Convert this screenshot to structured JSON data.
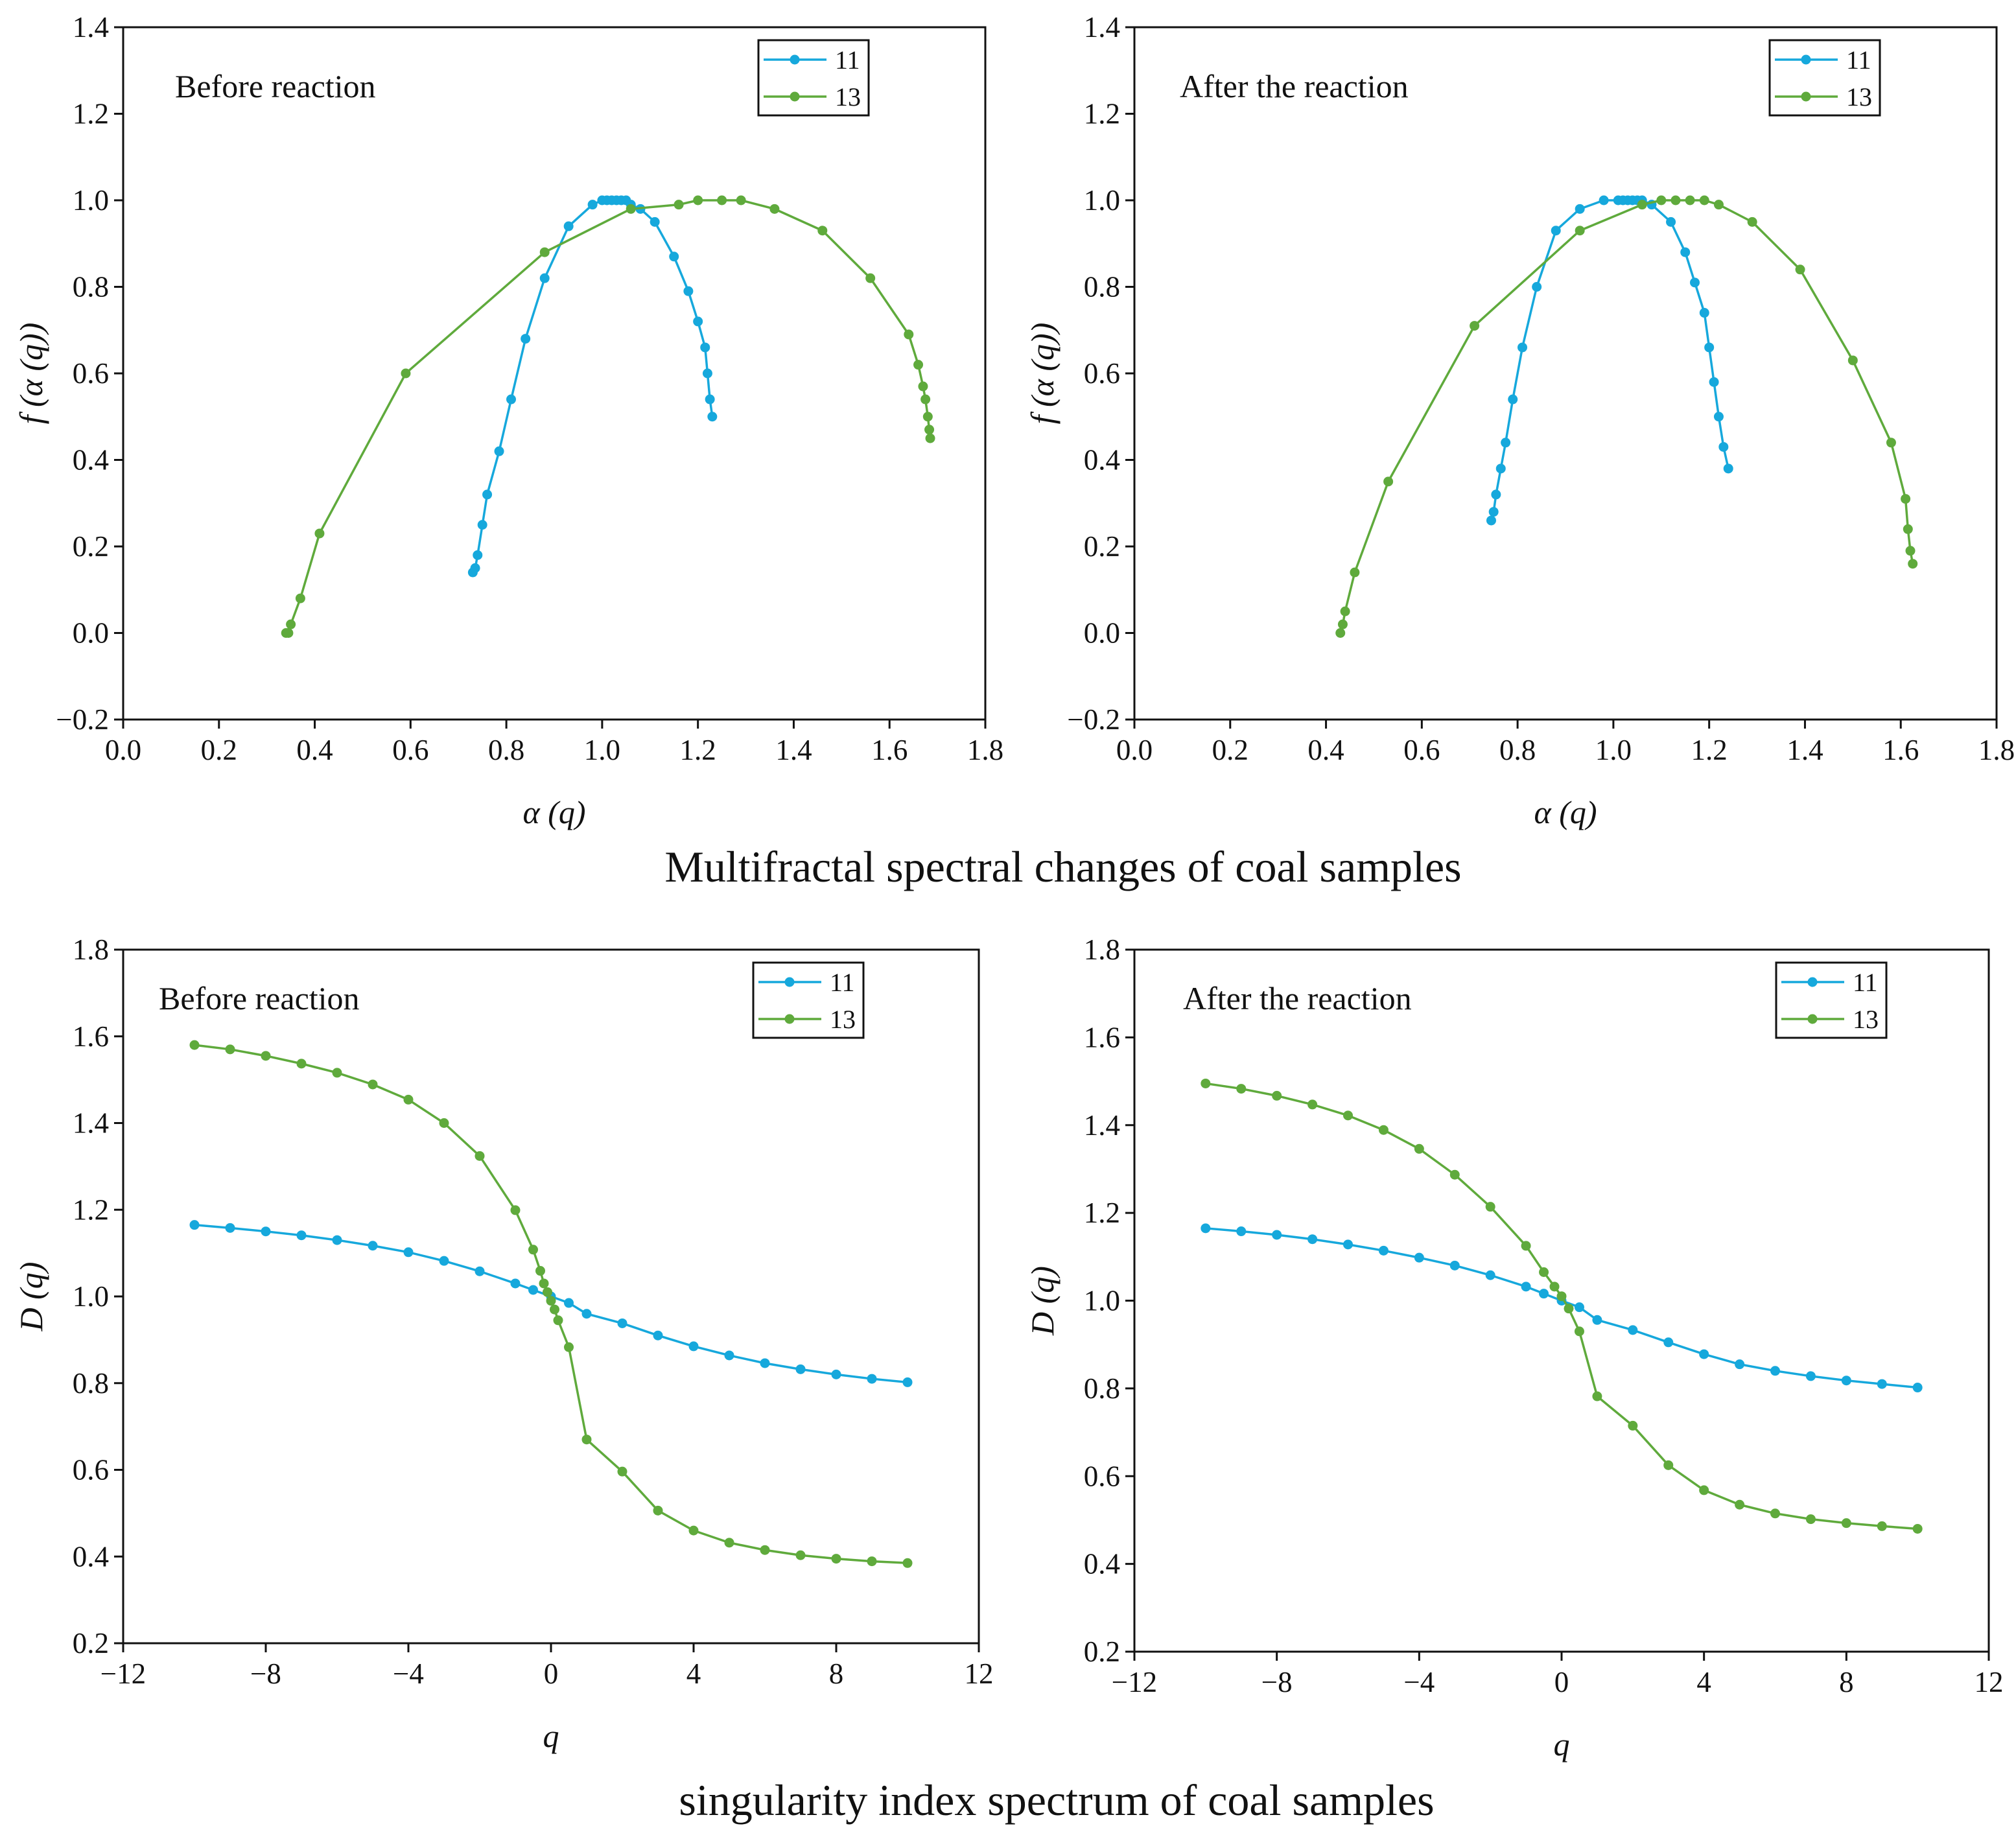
{
  "captions": {
    "top": "Multifractal spectral changes of coal samples",
    "bottom": "singularity index spectrum of coal samples"
  },
  "colors": {
    "s11": "#16a8dc",
    "s13": "#5faa3c"
  },
  "chart_data": [
    {
      "id": "tl",
      "type": "line",
      "title": "Before reaction",
      "xlabel": "α (q)",
      "ylabel": "f (α (q))",
      "xlim": [
        0.0,
        1.8
      ],
      "ylim": [
        -0.2,
        1.4
      ],
      "xticks": [
        "0.0",
        "0.2",
        "0.4",
        "0.6",
        "0.8",
        "1.0",
        "1.2",
        "1.4",
        "1.6",
        "1.8"
      ],
      "yticks": [
        "−0.2",
        "0.0",
        "0.2",
        "0.4",
        "0.6",
        "0.8",
        "1.0",
        "1.2",
        "1.4"
      ],
      "series": [
        {
          "name": "11",
          "color": "#16a8dc",
          "x": [
            0.73,
            0.735,
            0.74,
            0.75,
            0.76,
            0.785,
            0.81,
            0.84,
            0.88,
            0.93,
            0.98,
            1.0,
            1.01,
            1.02,
            1.03,
            1.04,
            1.05,
            1.06,
            1.08,
            1.11,
            1.15,
            1.18,
            1.2,
            1.215,
            1.22,
            1.225,
            1.23
          ],
          "y": [
            0.14,
            0.15,
            0.18,
            0.25,
            0.32,
            0.42,
            0.54,
            0.68,
            0.82,
            0.94,
            0.99,
            1.0,
            1.0,
            1.0,
            1.0,
            1.0,
            1.0,
            0.99,
            0.98,
            0.95,
            0.87,
            0.79,
            0.72,
            0.66,
            0.6,
            0.54,
            0.5
          ]
        },
        {
          "name": "13",
          "color": "#5faa3c",
          "x": [
            0.34,
            0.345,
            0.35,
            0.37,
            0.41,
            0.59,
            0.88,
            1.06,
            1.16,
            1.2,
            1.25,
            1.29,
            1.36,
            1.46,
            1.56,
            1.64,
            1.66,
            1.67,
            1.675,
            1.68,
            1.683,
            1.685
          ],
          "y": [
            0.0,
            0.0,
            0.02,
            0.08,
            0.23,
            0.6,
            0.88,
            0.98,
            0.99,
            1.0,
            1.0,
            1.0,
            0.98,
            0.93,
            0.82,
            0.69,
            0.62,
            0.57,
            0.54,
            0.5,
            0.47,
            0.45
          ]
        }
      ]
    },
    {
      "id": "tr",
      "type": "line",
      "title": "After the reaction",
      "xlabel": "α (q)",
      "ylabel": "f (α (q))",
      "xlim": [
        0.0,
        1.8
      ],
      "ylim": [
        -0.2,
        1.4
      ],
      "xticks": [
        "0.0",
        "0.2",
        "0.4",
        "0.6",
        "0.8",
        "1.0",
        "1.2",
        "1.4",
        "1.6",
        "1.8"
      ],
      "yticks": [
        "−0.2",
        "0.0",
        "0.2",
        "0.4",
        "0.6",
        "0.8",
        "1.0",
        "1.2",
        "1.4"
      ],
      "series": [
        {
          "name": "11",
          "color": "#16a8dc",
          "x": [
            0.745,
            0.75,
            0.755,
            0.765,
            0.775,
            0.79,
            0.81,
            0.84,
            0.88,
            0.93,
            0.98,
            1.01,
            1.02,
            1.03,
            1.04,
            1.05,
            1.06,
            1.08,
            1.12,
            1.15,
            1.17,
            1.19,
            1.2,
            1.21,
            1.22,
            1.23,
            1.24
          ],
          "y": [
            0.26,
            0.28,
            0.32,
            0.38,
            0.44,
            0.54,
            0.66,
            0.8,
            0.93,
            0.98,
            1.0,
            1.0,
            1.0,
            1.0,
            1.0,
            1.0,
            1.0,
            0.99,
            0.95,
            0.88,
            0.81,
            0.74,
            0.66,
            0.58,
            0.5,
            0.43,
            0.38
          ]
        },
        {
          "name": "13",
          "color": "#5faa3c",
          "x": [
            0.43,
            0.435,
            0.44,
            0.46,
            0.53,
            0.71,
            0.93,
            1.06,
            1.1,
            1.13,
            1.16,
            1.19,
            1.22,
            1.29,
            1.39,
            1.5,
            1.58,
            1.61,
            1.615,
            1.62,
            1.625
          ],
          "y": [
            0.0,
            0.02,
            0.05,
            0.14,
            0.35,
            0.71,
            0.93,
            0.99,
            1.0,
            1.0,
            1.0,
            1.0,
            0.99,
            0.95,
            0.84,
            0.63,
            0.44,
            0.31,
            0.24,
            0.19,
            0.16
          ]
        }
      ]
    },
    {
      "id": "bl",
      "type": "line",
      "title": "Before reaction",
      "xlabel": "q",
      "ylabel": "D (q)",
      "xlim": [
        -12,
        12
      ],
      "ylim": [
        0.2,
        1.8
      ],
      "xticks": [
        "−12",
        "−8",
        "−4",
        "0",
        "4",
        "8",
        "12"
      ],
      "yticks": [
        "0.2",
        "0.4",
        "0.6",
        "0.8",
        "1.0",
        "1.2",
        "1.4",
        "1.6",
        "1.8"
      ],
      "series": [
        {
          "name": "11",
          "color": "#16a8dc",
          "x": [
            -10,
            -9,
            -8,
            -7,
            -6,
            -5,
            -4,
            -3,
            -2,
            -1,
            -0.5,
            0,
            0.5,
            1,
            2,
            3,
            4,
            5,
            6,
            7,
            8,
            9,
            10
          ],
          "y": [
            1.165,
            1.158,
            1.15,
            1.141,
            1.13,
            1.117,
            1.102,
            1.082,
            1.058,
            1.03,
            1.015,
            1.0,
            0.985,
            0.96,
            0.938,
            0.91,
            0.885,
            0.864,
            0.846,
            0.832,
            0.82,
            0.81,
            0.802
          ]
        },
        {
          "name": "13",
          "color": "#5faa3c",
          "x": [
            -10,
            -9,
            -8,
            -7,
            -6,
            -5,
            -4,
            -3,
            -2,
            -1,
            -0.5,
            -0.3,
            -0.2,
            -0.1,
            0,
            0.1,
            0.2,
            0.5,
            1,
            2,
            3,
            4,
            5,
            6,
            7,
            8,
            9,
            10
          ],
          "y": [
            1.58,
            1.57,
            1.555,
            1.537,
            1.516,
            1.489,
            1.454,
            1.4,
            1.324,
            1.199,
            1.108,
            1.059,
            1.03,
            1.01,
            0.99,
            0.97,
            0.945,
            0.883,
            0.67,
            0.596,
            0.506,
            0.46,
            0.432,
            0.415,
            0.403,
            0.395,
            0.389,
            0.385
          ]
        }
      ]
    },
    {
      "id": "br",
      "type": "line",
      "title": "After the reaction",
      "xlabel": "q",
      "ylabel": "D (q)",
      "xlim": [
        -12,
        12
      ],
      "ylim": [
        0.2,
        1.8
      ],
      "xticks": [
        "−12",
        "−8",
        "−4",
        "0",
        "4",
        "8",
        "12"
      ],
      "yticks": [
        "0.2",
        "0.4",
        "0.6",
        "0.8",
        "1.0",
        "1.2",
        "1.4",
        "1.6",
        "1.8"
      ],
      "series": [
        {
          "name": "11",
          "color": "#16a8dc",
          "x": [
            -10,
            -9,
            -8,
            -7,
            -6,
            -5,
            -4,
            -3,
            -2,
            -1,
            -0.5,
            0,
            0.5,
            1,
            2,
            3,
            4,
            5,
            6,
            7,
            8,
            9,
            10
          ],
          "y": [
            1.165,
            1.158,
            1.15,
            1.14,
            1.128,
            1.114,
            1.098,
            1.08,
            1.058,
            1.032,
            1.016,
            1.0,
            0.985,
            0.956,
            0.933,
            0.905,
            0.878,
            0.855,
            0.84,
            0.828,
            0.818,
            0.81,
            0.802
          ]
        },
        {
          "name": "13",
          "color": "#5faa3c",
          "x": [
            -10,
            -9,
            -8,
            -7,
            -6,
            -5,
            -4,
            -3,
            -2,
            -1,
            -0.5,
            -0.2,
            0,
            0.2,
            0.5,
            1,
            2,
            3,
            4,
            5,
            6,
            7,
            8,
            9,
            10
          ],
          "y": [
            1.495,
            1.483,
            1.467,
            1.447,
            1.422,
            1.389,
            1.346,
            1.287,
            1.214,
            1.125,
            1.065,
            1.032,
            1.01,
            0.982,
            0.93,
            0.782,
            0.715,
            0.625,
            0.568,
            0.535,
            0.515,
            0.502,
            0.493,
            0.486,
            0.48
          ]
        }
      ]
    }
  ]
}
